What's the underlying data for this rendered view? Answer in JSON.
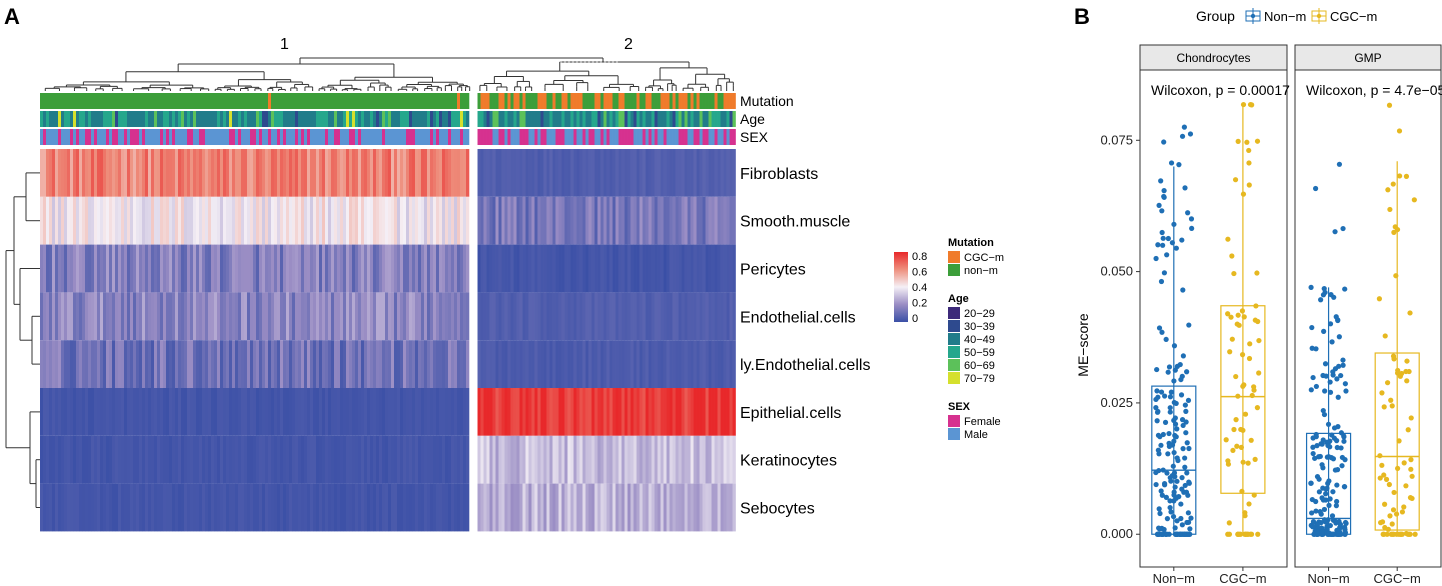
{
  "panel_a_label": "A",
  "panel_b_label": "B",
  "chart_data": [
    {
      "type": "heatmap",
      "panel": "A",
      "cluster_labels": [
        "1",
        "2"
      ],
      "cluster_fractions": [
        0.62,
        0.38
      ],
      "annotation_rows": [
        "Mutation",
        "Age",
        "SEX"
      ],
      "rows": [
        "Fibroblasts",
        "Smooth.muscle",
        "Pericytes",
        "Endothelial.cells",
        "ly.Endothelial.cells",
        "Epithelial.cells",
        "Keratinocytes",
        "Sebocytes"
      ],
      "row_mean_values": {
        "cluster_1": [
          0.62,
          0.4,
          0.15,
          0.17,
          0.12,
          0.02,
          0.02,
          0.02
        ],
        "cluster_2": [
          0.05,
          0.13,
          0.02,
          0.05,
          0.04,
          0.78,
          0.3,
          0.28
        ]
      },
      "colorbar": {
        "ticks": [
          "0.8",
          "0.6",
          "0.4",
          "0.2",
          "0"
        ],
        "range": [
          0,
          0.8
        ],
        "low_color": "#3a4fa6",
        "mid_color": "#f5f0f6",
        "high_color": "#e8282a"
      },
      "legend": {
        "mutation": {
          "title": "Mutation",
          "items": [
            {
              "label": "CGC−m",
              "color": "#f07b2b"
            },
            {
              "label": "non−m",
              "color": "#3c9e3a"
            }
          ]
        },
        "age": {
          "title": "Age",
          "items": [
            {
              "label": "20−29",
              "color": "#3d2a7a"
            },
            {
              "label": "30−39",
              "color": "#2e4a8e"
            },
            {
              "label": "40−49",
              "color": "#217c8a"
            },
            {
              "label": "50−59",
              "color": "#25a78c"
            },
            {
              "label": "60−69",
              "color": "#5cc15a"
            },
            {
              "label": "70−79",
              "color": "#d5e02d"
            }
          ]
        },
        "sex": {
          "title": "SEX",
          "items": [
            {
              "label": "Female",
              "color": "#d6318f"
            },
            {
              "label": "Male",
              "color": "#5b95d3"
            }
          ]
        }
      }
    },
    {
      "type": "box_scatter",
      "panel": "B",
      "legend_title": "Group",
      "groups": [
        {
          "name": "Non−m",
          "color": "#1f6fb5"
        },
        {
          "name": "CGC−m",
          "color": "#e6b820"
        }
      ],
      "ylabel": "ME−score",
      "ylim": [
        -0.003,
        0.088
      ],
      "yticks": [
        0.0,
        0.025,
        0.05,
        0.075
      ],
      "ytick_labels": [
        "0.000",
        "0.025",
        "0.050",
        "0.075"
      ],
      "facets": [
        {
          "title": "Chondrocytes",
          "annotation": "Wilcoxon, p = 0.00017",
          "x_labels": [
            "Non−m",
            "CGC−m"
          ],
          "boxes": [
            {
              "group": "Non−m",
              "q1": 0.0,
              "median": 0.0122,
              "q3": 0.0282,
              "whisker_low": 0.0,
              "whisker_high": 0.07,
              "max": 0.0785
            },
            {
              "group": "CGC−m",
              "q1": 0.0078,
              "median": 0.0262,
              "q3": 0.0435,
              "whisker_low": 0.0,
              "whisker_high": 0.0818,
              "max": 0.0818
            }
          ]
        },
        {
          "title": "GMP",
          "annotation": "Wilcoxon, p = 4.7e−05",
          "x_labels": [
            "Non−m",
            "CGC−m"
          ],
          "boxes": [
            {
              "group": "Non−m",
              "q1": 0.0,
              "median": 0.003,
              "q3": 0.0192,
              "whisker_low": 0.0,
              "whisker_high": 0.047,
              "max": 0.0723
            },
            {
              "group": "CGC−m",
              "q1": 0.0008,
              "median": 0.0148,
              "q3": 0.0345,
              "whisker_low": 0.0,
              "whisker_high": 0.071,
              "max": 0.0862
            }
          ]
        }
      ]
    }
  ]
}
